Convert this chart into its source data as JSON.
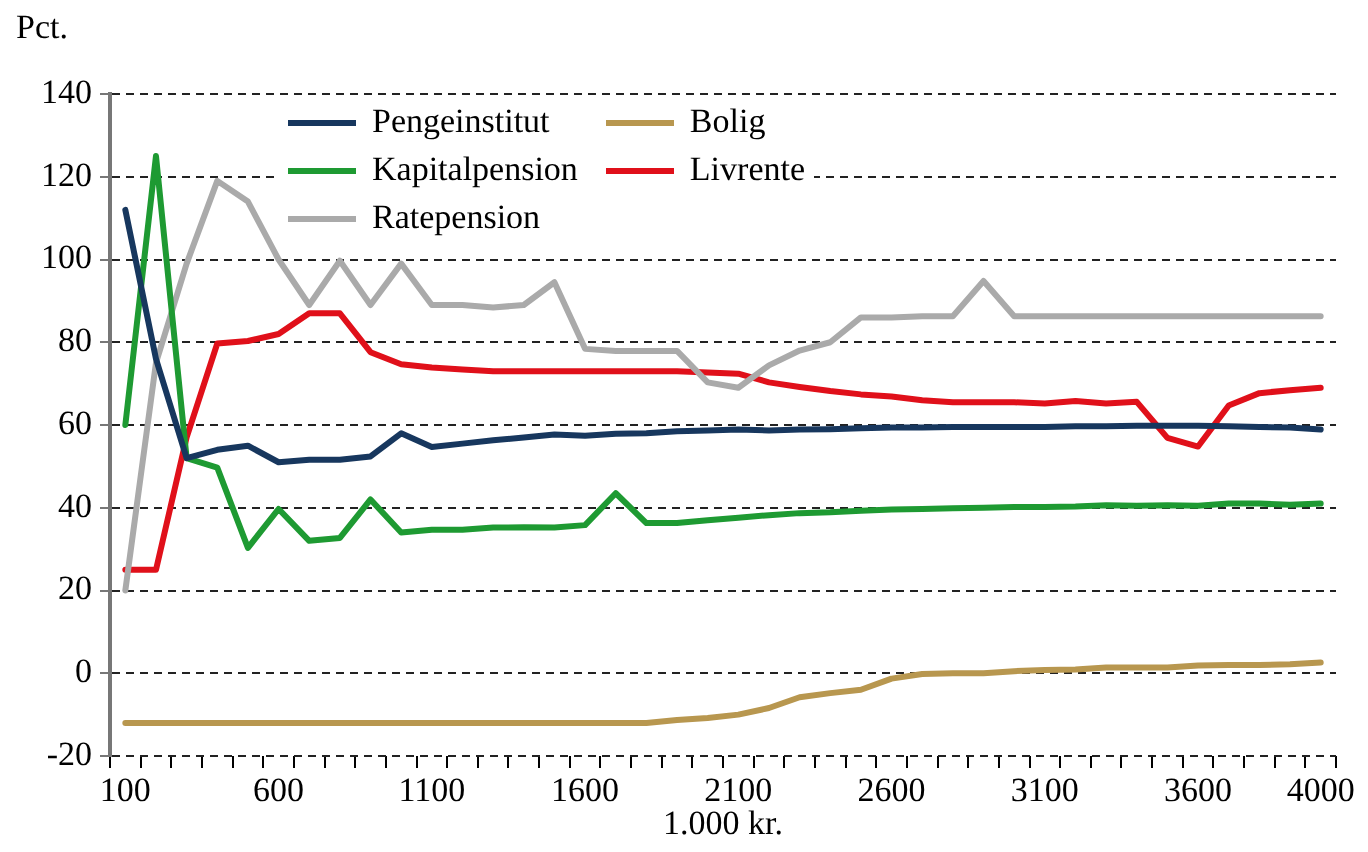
{
  "chart_data": {
    "type": "line",
    "ylabel": "Pct.",
    "xlabel": "1.000 kr.",
    "categories": [
      "100",
      null,
      null,
      null,
      null,
      "600",
      null,
      null,
      null,
      null,
      "1100",
      null,
      null,
      null,
      null,
      "1600",
      null,
      null,
      null,
      null,
      "2100",
      null,
      null,
      null,
      null,
      "2600",
      null,
      null,
      null,
      null,
      "3100",
      null,
      null,
      null,
      null,
      "3600",
      null,
      null,
      null,
      "4000"
    ],
    "ylim": [
      -20,
      140
    ],
    "yticks": [
      -20,
      0,
      20,
      40,
      60,
      80,
      100,
      120,
      140
    ],
    "grid": "y",
    "legend": "top",
    "marker": "none",
    "line_style": "solid",
    "series": [
      {
        "name": "Pengeinstitut",
        "color": "#17375e",
        "values": [
          112,
          76,
          52,
          54,
          55,
          51,
          51.6,
          51.6,
          52.4,
          58,
          54.7,
          55.5,
          56.3,
          57,
          57.7,
          57.4,
          57.9,
          58,
          58.5,
          58.7,
          58.9,
          58.7,
          58.9,
          59,
          59.2,
          59.4,
          59.4,
          59.5,
          59.5,
          59.5,
          59.5,
          59.7,
          59.7,
          59.8,
          59.8,
          59.8,
          59.7,
          59.5,
          59.4,
          58.9
        ]
      },
      {
        "name": "Kapitalpension",
        "color": "#1e9a32",
        "values": [
          60,
          125,
          52,
          49.7,
          30.3,
          39.7,
          32,
          32.7,
          42,
          34,
          34.7,
          34.7,
          35.2,
          35.3,
          35.2,
          35.8,
          43.5,
          36.3,
          36.3,
          37,
          37.6,
          38.2,
          38.7,
          38.9,
          39.3,
          39.6,
          39.7,
          39.9,
          40,
          40.2,
          40.2,
          40.3,
          40.6,
          40.5,
          40.6,
          40.5,
          41,
          41,
          40.7,
          41
        ]
      },
      {
        "name": "Ratepension",
        "color": "#aaaaaa",
        "values": [
          20,
          75,
          99,
          119,
          114,
          100,
          89,
          99.7,
          89,
          99,
          89,
          89,
          88.4,
          89,
          94.5,
          78.4,
          77.9,
          77.9,
          77.9,
          70.3,
          69,
          74.4,
          78,
          80,
          86,
          86,
          86.3,
          86.3,
          94.8,
          86.3,
          86.3,
          86.3,
          86.3,
          86.3,
          86.3,
          86.3,
          86.3,
          86.3,
          86.3,
          86.3
        ]
      },
      {
        "name": "Bolig",
        "color": "#b8974f",
        "values": [
          -12,
          -12,
          -12,
          -12,
          -12,
          -12,
          -12,
          -12,
          -12,
          -12,
          -12,
          -12,
          -12,
          -12,
          -12,
          -12,
          -12,
          -12,
          -11.3,
          -10.8,
          -10,
          -8.4,
          -5.8,
          -4.8,
          -4,
          -1.3,
          -0.2,
          0,
          0,
          0.5,
          0.8,
          0.9,
          1.4,
          1.4,
          1.4,
          1.9,
          2,
          2,
          2.2,
          2.6
        ]
      },
      {
        "name": "Livrente",
        "color": "#e0101a",
        "values": [
          25,
          25,
          57,
          79.7,
          80.3,
          82,
          87,
          87,
          77.6,
          74.7,
          73.9,
          73.4,
          73,
          73,
          73,
          73,
          73,
          73,
          73,
          72.7,
          72.4,
          70.3,
          69.2,
          68.2,
          67.4,
          66.9,
          66,
          65.5,
          65.5,
          65.5,
          65.2,
          65.8,
          65.2,
          65.6,
          56.9,
          54.8,
          64.7,
          67.7,
          68.4,
          69
        ]
      }
    ]
  }
}
